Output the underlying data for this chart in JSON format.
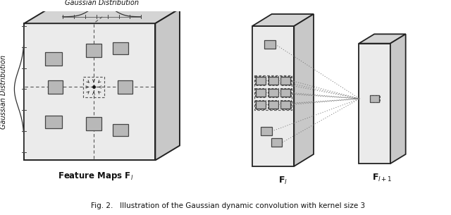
{
  "fig_bg": "#ffffff",
  "caption": "Fig. 2.   Illustration of the Gaussian dynamic convolution with kernel size 3",
  "face_color_front": "#ebebeb",
  "face_color_top": "#d4d4d4",
  "face_color_right": "#c8c8c8",
  "edge_color": "#222222",
  "patch_color": "#b8b8b8",
  "patch_edge": "#444444",
  "dashed_color": "#555555",
  "arrow_color": "#333333"
}
